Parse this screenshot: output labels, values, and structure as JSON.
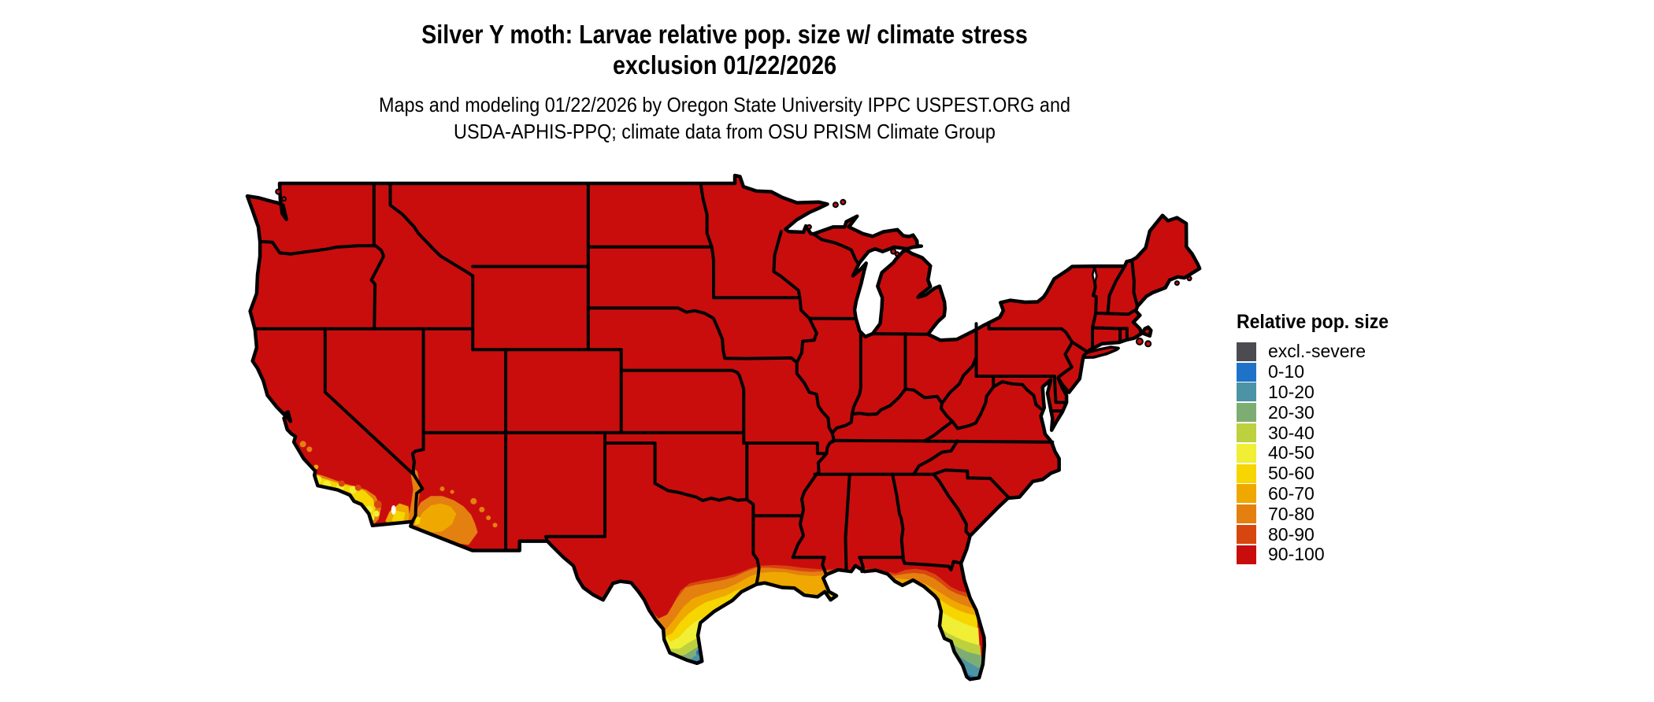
{
  "page": {
    "background": "#ffffff",
    "border_color": "#000000",
    "water_color": "#ffffff"
  },
  "title": {
    "line1": "Silver Y moth: Larvae relative pop. size w/ climate stress",
    "line2": "exclusion 01/22/2026"
  },
  "subtitle": {
    "line1": "Maps and modeling 01/22/2026 by Oregon State University IPPC USPEST.ORG and",
    "line2": "USDA-APHIS-PPQ; climate data from OSU PRISM Climate Group"
  },
  "legend": {
    "title": "Relative pop. size",
    "items": [
      {
        "label": "excl.-severe",
        "color": "#4b4b51"
      },
      {
        "label": "0-10",
        "color": "#1e73c9"
      },
      {
        "label": "10-20",
        "color": "#4d93a6"
      },
      {
        "label": "20-30",
        "color": "#7ead74"
      },
      {
        "label": "30-40",
        "color": "#bdd03e"
      },
      {
        "label": "40-50",
        "color": "#f0ee35"
      },
      {
        "label": "50-60",
        "color": "#f6d500"
      },
      {
        "label": "60-70",
        "color": "#efa800"
      },
      {
        "label": "70-80",
        "color": "#e4800f"
      },
      {
        "label": "80-90",
        "color": "#d8460f"
      },
      {
        "label": "90-100",
        "color": "#c90d0d"
      }
    ]
  },
  "map": {
    "region": "Continental United States",
    "base_class": "90-100",
    "colored_areas": "southern California coast, southwestern Arizona, south Texas, Gulf Coast fringe, Florida peninsula grade from 80-90 down to 0-10"
  }
}
